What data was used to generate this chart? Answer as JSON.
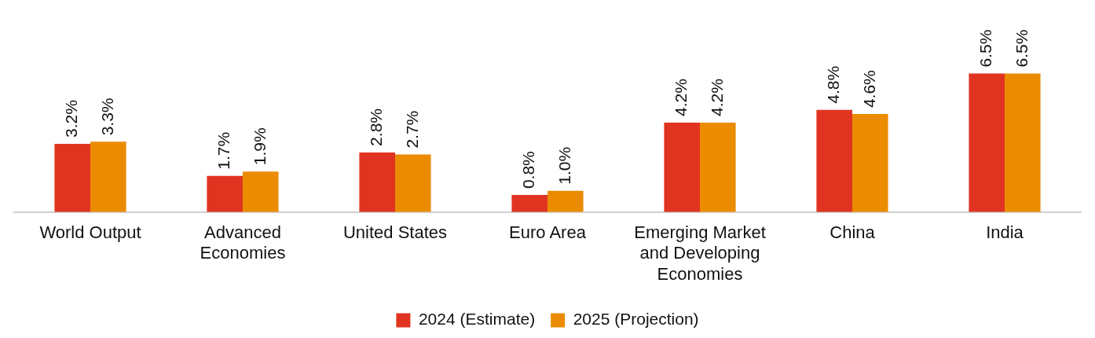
{
  "chart_data": {
    "type": "bar",
    "categories": [
      "World Output",
      "Advanced Economies",
      "United States",
      "Euro Area",
      "Emerging Market and Developing Economies",
      "China",
      "India"
    ],
    "series": [
      {
        "name": "2024 (Estimate)",
        "color": "#e03421",
        "values": [
          3.2,
          1.7,
          2.8,
          0.8,
          4.2,
          4.8,
          6.5
        ],
        "value_labels": [
          "3.2%",
          "1.7%",
          "2.8%",
          "0.8%",
          "4.2%",
          "4.8%",
          "6.5%"
        ]
      },
      {
        "name": "2025 (Projection)",
        "color": "#eb8c00",
        "values": [
          3.3,
          1.9,
          2.7,
          1.0,
          4.2,
          4.6,
          6.5
        ],
        "value_labels": [
          "3.3%",
          "1.9%",
          "2.7%",
          "1.0%",
          "4.2%",
          "4.6%",
          "6.5%"
        ]
      }
    ],
    "legend": "bottom",
    "grid": false,
    "tick_labels": "x"
  }
}
